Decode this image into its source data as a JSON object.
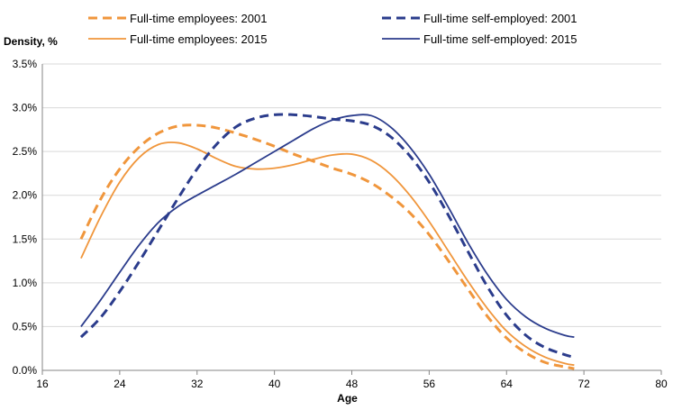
{
  "chart_data": {
    "type": "line",
    "xlabel": "Age",
    "ylabel": "Density, %",
    "xlim": [
      16,
      80
    ],
    "ylim": [
      0,
      3.5
    ],
    "x_ticks": [
      16,
      24,
      32,
      40,
      48,
      56,
      64,
      72,
      80
    ],
    "y_ticks": [
      0,
      0.5,
      1.0,
      1.5,
      2.0,
      2.5,
      3.0,
      3.5
    ],
    "x_tick_labels": [
      "16",
      "24",
      "32",
      "40",
      "48",
      "56",
      "64",
      "72",
      "80"
    ],
    "y_tick_labels": [
      "0.0%",
      "0.5%",
      "1.0%",
      "1.5%",
      "2.0%",
      "2.5%",
      "3.0%",
      "3.5%"
    ],
    "grid": "horizontal",
    "legend_position": "top",
    "series": [
      {
        "name": "Full-time employees: 2001",
        "color": "#F0963C",
        "dash": "dashed",
        "x": [
          20,
          22,
          24,
          26,
          28,
          30,
          32,
          34,
          36,
          38,
          40,
          42,
          44,
          46,
          48,
          50,
          52,
          54,
          56,
          58,
          60,
          62,
          64,
          66,
          68,
          70,
          71
        ],
        "y": [
          1.5,
          1.95,
          2.3,
          2.55,
          2.71,
          2.79,
          2.8,
          2.77,
          2.71,
          2.64,
          2.56,
          2.47,
          2.39,
          2.31,
          2.24,
          2.14,
          1.99,
          1.8,
          1.55,
          1.25,
          0.93,
          0.62,
          0.37,
          0.2,
          0.09,
          0.04,
          0.02
        ]
      },
      {
        "name": "Full-time employees: 2015",
        "color": "#F0963C",
        "dash": "solid",
        "x": [
          20,
          22,
          24,
          26,
          28,
          30,
          32,
          34,
          36,
          38,
          40,
          42,
          44,
          46,
          48,
          50,
          52,
          54,
          56,
          58,
          60,
          62,
          64,
          66,
          68,
          70,
          71
        ],
        "y": [
          1.28,
          1.75,
          2.15,
          2.43,
          2.58,
          2.6,
          2.53,
          2.42,
          2.33,
          2.3,
          2.31,
          2.35,
          2.41,
          2.46,
          2.47,
          2.4,
          2.24,
          2.0,
          1.7,
          1.36,
          1.02,
          0.71,
          0.45,
          0.27,
          0.15,
          0.08,
          0.06
        ]
      },
      {
        "name": "Full-time self-employed: 2001",
        "color": "#2B3C8C",
        "dash": "dashed",
        "x": [
          20,
          22,
          24,
          26,
          28,
          30,
          32,
          34,
          36,
          38,
          40,
          42,
          44,
          46,
          48,
          50,
          52,
          54,
          56,
          58,
          60,
          62,
          64,
          66,
          68,
          70,
          71
        ],
        "y": [
          0.38,
          0.6,
          0.9,
          1.24,
          1.6,
          1.96,
          2.3,
          2.58,
          2.78,
          2.88,
          2.92,
          2.92,
          2.9,
          2.87,
          2.85,
          2.8,
          2.67,
          2.45,
          2.15,
          1.77,
          1.36,
          0.96,
          0.63,
          0.4,
          0.26,
          0.18,
          0.15
        ]
      },
      {
        "name": "Full-time self-employed: 2015",
        "color": "#2B3C8C",
        "dash": "solid",
        "x": [
          20,
          22,
          24,
          26,
          28,
          30,
          32,
          34,
          36,
          38,
          40,
          42,
          44,
          46,
          48,
          50,
          52,
          54,
          56,
          58,
          60,
          62,
          64,
          66,
          68,
          70,
          71
        ],
        "y": [
          0.5,
          0.8,
          1.12,
          1.43,
          1.69,
          1.87,
          2.0,
          2.12,
          2.24,
          2.37,
          2.5,
          2.63,
          2.76,
          2.86,
          2.91,
          2.91,
          2.78,
          2.55,
          2.24,
          1.86,
          1.46,
          1.1,
          0.81,
          0.61,
          0.48,
          0.4,
          0.38
        ]
      }
    ]
  }
}
